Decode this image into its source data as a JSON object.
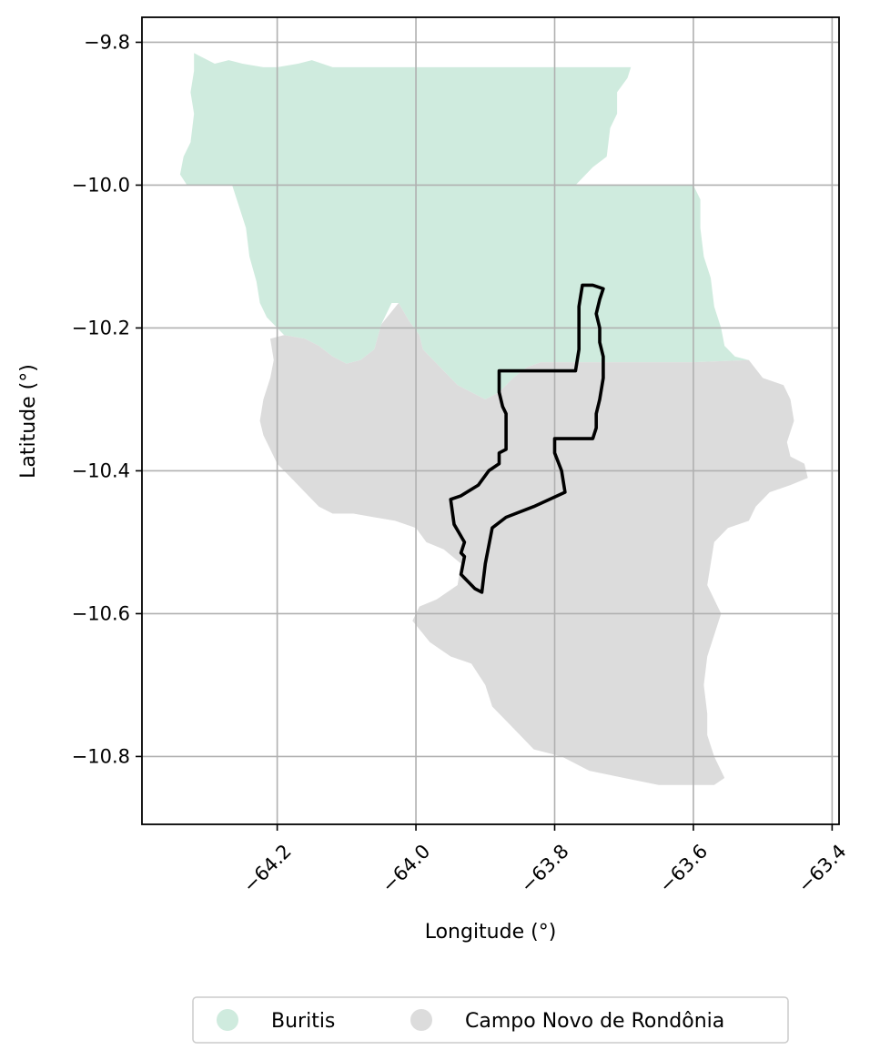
{
  "chart_data": {
    "type": "map",
    "xlabel": "Longitude (°)",
    "ylabel": "Latitude (°)",
    "xlim": [
      -64.395,
      -63.39
    ],
    "ylim": [
      -10.895,
      -9.765
    ],
    "x_ticks": [
      -64.2,
      -64.0,
      -63.8,
      -63.6,
      -63.4
    ],
    "x_tick_labels": [
      "−64.2",
      "−64.0",
      "−63.8",
      "−63.6",
      "−63.4"
    ],
    "y_ticks": [
      -9.8,
      -10.0,
      -10.2,
      -10.4,
      -10.6,
      -10.8
    ],
    "y_tick_labels": [
      "−9.8",
      "−10.0",
      "−10.2",
      "−10.4",
      "−10.6",
      "−10.8"
    ],
    "grid": true,
    "legend_position": "bottom-center",
    "regions": [
      {
        "name": "Buritis",
        "color": "#cfebde",
        "coords": [
          [
            -64.32,
            -9.815
          ],
          [
            -64.31,
            -9.82
          ],
          [
            -64.29,
            -9.83
          ],
          [
            -64.27,
            -9.825
          ],
          [
            -64.25,
            -9.83
          ],
          [
            -64.22,
            -9.835
          ],
          [
            -64.2,
            -9.835
          ],
          [
            -64.17,
            -9.83
          ],
          [
            -64.15,
            -9.825
          ],
          [
            -64.12,
            -9.835
          ],
          [
            -64.0,
            -9.835
          ],
          [
            -63.9,
            -9.835
          ],
          [
            -63.8,
            -9.835
          ],
          [
            -63.72,
            -9.835
          ],
          [
            -63.69,
            -9.835
          ],
          [
            -63.695,
            -9.85
          ],
          [
            -63.71,
            -9.87
          ],
          [
            -63.71,
            -9.9
          ],
          [
            -63.72,
            -9.92
          ],
          [
            -63.725,
            -9.96
          ],
          [
            -63.745,
            -9.975
          ],
          [
            -63.76,
            -9.99
          ],
          [
            -63.77,
            -10.0
          ],
          [
            -63.7,
            -10.0
          ],
          [
            -63.6,
            -10.0
          ],
          [
            -63.59,
            -10.02
          ],
          [
            -63.59,
            -10.06
          ],
          [
            -63.585,
            -10.1
          ],
          [
            -63.575,
            -10.13
          ],
          [
            -63.57,
            -10.17
          ],
          [
            -63.56,
            -10.2
          ],
          [
            -63.555,
            -10.225
          ],
          [
            -63.54,
            -10.24
          ],
          [
            -63.52,
            -10.245
          ],
          [
            -63.6,
            -10.248
          ],
          [
            -63.7,
            -10.248
          ],
          [
            -63.82,
            -10.248
          ],
          [
            -63.84,
            -10.255
          ],
          [
            -63.86,
            -10.27
          ],
          [
            -63.88,
            -10.29
          ],
          [
            -63.9,
            -10.3
          ],
          [
            -63.92,
            -10.29
          ],
          [
            -63.94,
            -10.28
          ],
          [
            -63.96,
            -10.26
          ],
          [
            -63.98,
            -10.24
          ],
          [
            -63.99,
            -10.23
          ],
          [
            -63.995,
            -10.21
          ],
          [
            -64.01,
            -10.19
          ],
          [
            -64.025,
            -10.165
          ],
          [
            -64.035,
            -10.165
          ],
          [
            -64.05,
            -10.195
          ],
          [
            -64.06,
            -10.23
          ],
          [
            -64.08,
            -10.245
          ],
          [
            -64.1,
            -10.25
          ],
          [
            -64.12,
            -10.24
          ],
          [
            -64.14,
            -10.225
          ],
          [
            -64.16,
            -10.215
          ],
          [
            -64.19,
            -10.21
          ],
          [
            -64.205,
            -10.195
          ],
          [
            -64.215,
            -10.185
          ],
          [
            -64.225,
            -10.165
          ],
          [
            -64.23,
            -10.135
          ],
          [
            -64.24,
            -10.1
          ],
          [
            -64.245,
            -10.06
          ],
          [
            -64.255,
            -10.03
          ],
          [
            -64.265,
            -10.0
          ],
          [
            -64.3,
            -10.0
          ],
          [
            -64.33,
            -10.0
          ],
          [
            -64.34,
            -9.985
          ],
          [
            -64.335,
            -9.96
          ],
          [
            -64.325,
            -9.94
          ],
          [
            -64.32,
            -9.9
          ],
          [
            -64.325,
            -9.87
          ],
          [
            -64.32,
            -9.84
          ]
        ]
      },
      {
        "name": "Campo Novo de Rondônia",
        "color": "#dcdcdc",
        "coords": [
          [
            -64.025,
            -10.165
          ],
          [
            -64.01,
            -10.19
          ],
          [
            -63.995,
            -10.21
          ],
          [
            -63.99,
            -10.23
          ],
          [
            -63.98,
            -10.24
          ],
          [
            -63.96,
            -10.26
          ],
          [
            -63.94,
            -10.28
          ],
          [
            -63.92,
            -10.29
          ],
          [
            -63.9,
            -10.3
          ],
          [
            -63.88,
            -10.29
          ],
          [
            -63.86,
            -10.27
          ],
          [
            -63.84,
            -10.255
          ],
          [
            -63.82,
            -10.248
          ],
          [
            -63.7,
            -10.248
          ],
          [
            -63.6,
            -10.248
          ],
          [
            -63.52,
            -10.245
          ],
          [
            -63.5,
            -10.27
          ],
          [
            -63.47,
            -10.28
          ],
          [
            -63.46,
            -10.3
          ],
          [
            -63.455,
            -10.33
          ],
          [
            -63.465,
            -10.36
          ],
          [
            -63.46,
            -10.38
          ],
          [
            -63.44,
            -10.39
          ],
          [
            -63.435,
            -10.41
          ],
          [
            -63.46,
            -10.42
          ],
          [
            -63.49,
            -10.43
          ],
          [
            -63.51,
            -10.45
          ],
          [
            -63.52,
            -10.47
          ],
          [
            -63.55,
            -10.48
          ],
          [
            -63.57,
            -10.5
          ],
          [
            -63.575,
            -10.53
          ],
          [
            -63.58,
            -10.56
          ],
          [
            -63.56,
            -10.6
          ],
          [
            -63.57,
            -10.63
          ],
          [
            -63.58,
            -10.66
          ],
          [
            -63.585,
            -10.7
          ],
          [
            -63.58,
            -10.74
          ],
          [
            -63.58,
            -10.77
          ],
          [
            -63.57,
            -10.8
          ],
          [
            -63.555,
            -10.83
          ],
          [
            -63.57,
            -10.84
          ],
          [
            -63.6,
            -10.84
          ],
          [
            -63.65,
            -10.84
          ],
          [
            -63.7,
            -10.83
          ],
          [
            -63.75,
            -10.82
          ],
          [
            -63.79,
            -10.8
          ],
          [
            -63.83,
            -10.79
          ],
          [
            -63.86,
            -10.76
          ],
          [
            -63.89,
            -10.73
          ],
          [
            -63.9,
            -10.7
          ],
          [
            -63.92,
            -10.67
          ],
          [
            -63.95,
            -10.66
          ],
          [
            -63.98,
            -10.64
          ],
          [
            -64.005,
            -10.61
          ],
          [
            -63.995,
            -10.59
          ],
          [
            -63.97,
            -10.58
          ],
          [
            -63.94,
            -10.56
          ],
          [
            -63.935,
            -10.53
          ],
          [
            -63.96,
            -10.51
          ],
          [
            -63.985,
            -10.5
          ],
          [
            -64.0,
            -10.48
          ],
          [
            -64.03,
            -10.47
          ],
          [
            -64.06,
            -10.465
          ],
          [
            -64.09,
            -10.46
          ],
          [
            -64.12,
            -10.46
          ],
          [
            -64.14,
            -10.45
          ],
          [
            -64.16,
            -10.43
          ],
          [
            -64.18,
            -10.41
          ],
          [
            -64.2,
            -10.39
          ],
          [
            -64.21,
            -10.37
          ],
          [
            -64.22,
            -10.35
          ],
          [
            -64.225,
            -10.33
          ],
          [
            -64.22,
            -10.3
          ],
          [
            -64.21,
            -10.27
          ],
          [
            -64.205,
            -10.245
          ],
          [
            -64.21,
            -10.215
          ],
          [
            -64.19,
            -10.21
          ],
          [
            -64.16,
            -10.215
          ],
          [
            -64.14,
            -10.225
          ],
          [
            -64.12,
            -10.24
          ],
          [
            -64.1,
            -10.25
          ],
          [
            -64.08,
            -10.245
          ],
          [
            -64.06,
            -10.23
          ],
          [
            -64.05,
            -10.195
          ]
        ]
      }
    ],
    "outline": {
      "color": "#000000",
      "coords": [
        [
          -63.76,
          -10.14
        ],
        [
          -63.745,
          -10.14
        ],
        [
          -63.73,
          -10.145
        ],
        [
          -63.735,
          -10.16
        ],
        [
          -63.74,
          -10.18
        ],
        [
          -63.735,
          -10.2
        ],
        [
          -63.735,
          -10.22
        ],
        [
          -63.73,
          -10.24
        ],
        [
          -63.73,
          -10.27
        ],
        [
          -63.735,
          -10.3
        ],
        [
          -63.74,
          -10.32
        ],
        [
          -63.74,
          -10.34
        ],
        [
          -63.745,
          -10.355
        ],
        [
          -63.77,
          -10.355
        ],
        [
          -63.8,
          -10.355
        ],
        [
          -63.8,
          -10.375
        ],
        [
          -63.79,
          -10.4
        ],
        [
          -63.785,
          -10.43
        ],
        [
          -63.83,
          -10.45
        ],
        [
          -63.87,
          -10.465
        ],
        [
          -63.89,
          -10.48
        ],
        [
          -63.9,
          -10.53
        ],
        [
          -63.905,
          -10.57
        ],
        [
          -63.915,
          -10.565
        ],
        [
          -63.925,
          -10.555
        ],
        [
          -63.935,
          -10.545
        ],
        [
          -63.93,
          -10.52
        ],
        [
          -63.935,
          -10.515
        ],
        [
          -63.93,
          -10.5
        ],
        [
          -63.945,
          -10.475
        ],
        [
          -63.95,
          -10.44
        ],
        [
          -63.935,
          -10.435
        ],
        [
          -63.91,
          -10.42
        ],
        [
          -63.895,
          -10.4
        ],
        [
          -63.88,
          -10.39
        ],
        [
          -63.88,
          -10.375
        ],
        [
          -63.87,
          -10.37
        ],
        [
          -63.87,
          -10.32
        ],
        [
          -63.875,
          -10.31
        ],
        [
          -63.88,
          -10.29
        ],
        [
          -63.88,
          -10.26
        ],
        [
          -63.83,
          -10.26
        ],
        [
          -63.8,
          -10.26
        ],
        [
          -63.77,
          -10.26
        ],
        [
          -63.765,
          -10.23
        ],
        [
          -63.765,
          -10.2
        ],
        [
          -63.765,
          -10.17
        ]
      ]
    },
    "legend": [
      {
        "label": "Buritis",
        "color": "#cfebde"
      },
      {
        "label": "Campo Novo de Rondônia",
        "color": "#dcdcdc"
      }
    ]
  }
}
